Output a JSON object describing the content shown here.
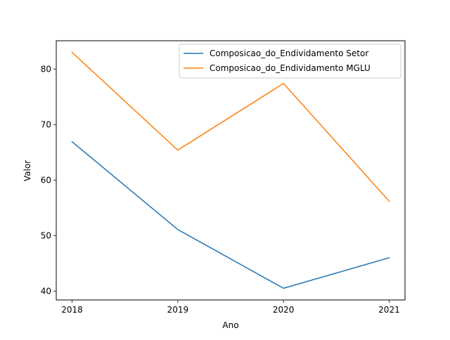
{
  "chart_data": {
    "type": "line",
    "title": "",
    "xlabel": "Ano",
    "ylabel": "Valor",
    "x": [
      2018,
      2019,
      2020,
      2021
    ],
    "x_ticks": [
      "2018",
      "2019",
      "2020",
      "2021"
    ],
    "y_ticks": [
      "40",
      "50",
      "60",
      "70",
      "80"
    ],
    "xlim": [
      2017.85,
      2021.15
    ],
    "ylim": [
      38.4,
      85.1
    ],
    "grid": false,
    "legend_position": "upper right",
    "series": [
      {
        "name": "Composicao_do_Endividamento Setor",
        "color": "#1f77b4",
        "values": [
          66.9,
          51.1,
          40.5,
          46.0
        ]
      },
      {
        "name": "Composicao_do_Endividamento MGLU",
        "color": "#ff7f0e",
        "values": [
          83.0,
          65.4,
          77.4,
          56.2
        ]
      }
    ]
  }
}
